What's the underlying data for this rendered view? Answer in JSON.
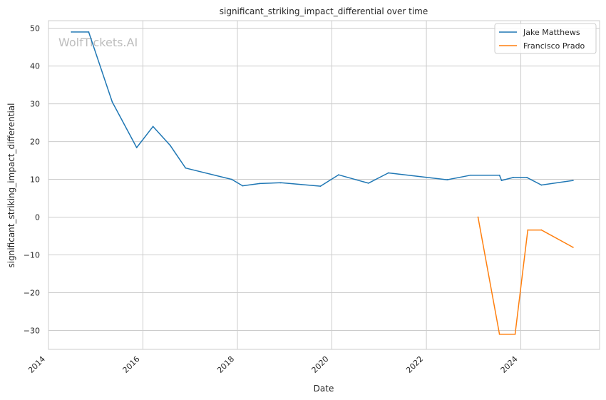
{
  "chart_data": {
    "type": "line",
    "title": "significant_striking_impact_differential over time",
    "xlabel": "Date",
    "ylabel": "significant_striking_impact_differential",
    "watermark": "WolfTickets.AI",
    "xlim": [
      "2014-01-01",
      "2025-09-01"
    ],
    "ylim": [
      -35,
      52
    ],
    "x_ticks": [
      {
        "date": "2014-01-01",
        "label": "2014"
      },
      {
        "date": "2016-01-01",
        "label": "2016"
      },
      {
        "date": "2018-01-01",
        "label": "2018"
      },
      {
        "date": "2020-01-01",
        "label": "2020"
      },
      {
        "date": "2022-01-01",
        "label": "2022"
      },
      {
        "date": "2024-01-01",
        "label": "2024"
      }
    ],
    "y_ticks": [
      50,
      40,
      30,
      20,
      10,
      0,
      -10,
      -20,
      -30
    ],
    "y_tick_labels": [
      "50",
      "40",
      "30",
      "20",
      "10",
      "0",
      "−10",
      "−20",
      "−30"
    ],
    "grid": true,
    "legend_position": "top-right",
    "series": [
      {
        "name": "Jake Matthews",
        "color": "#1f77b4",
        "points": [
          {
            "x": "2014-06-28",
            "y": 49.0
          },
          {
            "x": "2014-11-08",
            "y": 49.0
          },
          {
            "x": "2015-05-09",
            "y": 30.5
          },
          {
            "x": "2015-11-14",
            "y": 18.4
          },
          {
            "x": "2016-03-19",
            "y": 24.0
          },
          {
            "x": "2016-07-30",
            "y": 19.0
          },
          {
            "x": "2016-11-26",
            "y": 13.0
          },
          {
            "x": "2017-11-18",
            "y": 10.0
          },
          {
            "x": "2018-02-10",
            "y": 8.3
          },
          {
            "x": "2018-06-23",
            "y": 8.9
          },
          {
            "x": "2018-12-02",
            "y": 9.1
          },
          {
            "x": "2019-10-05",
            "y": 8.2
          },
          {
            "x": "2020-02-22",
            "y": 11.2
          },
          {
            "x": "2020-10-10",
            "y": 9.0
          },
          {
            "x": "2021-03-13",
            "y": 11.7
          },
          {
            "x": "2022-06-11",
            "y": 9.9
          },
          {
            "x": "2022-12-10",
            "y": 11.1
          },
          {
            "x": "2023-07-20",
            "y": 11.1
          },
          {
            "x": "2023-08-05",
            "y": 9.7
          },
          {
            "x": "2023-11-04",
            "y": 10.5
          },
          {
            "x": "2024-02-17",
            "y": 10.5
          },
          {
            "x": "2024-06-08",
            "y": 8.5
          },
          {
            "x": "2025-02-08",
            "y": 9.7
          }
        ]
      },
      {
        "name": "Francisco Prado",
        "color": "#ff7f0e",
        "points": [
          {
            "x": "2023-02-04",
            "y": 0.0
          },
          {
            "x": "2023-07-20",
            "y": -31.0
          },
          {
            "x": "2023-11-18",
            "y": -31.0
          },
          {
            "x": "2024-02-24",
            "y": -3.4
          },
          {
            "x": "2024-06-08",
            "y": -3.4
          },
          {
            "x": "2025-02-08",
            "y": -8.0
          }
        ]
      }
    ]
  }
}
